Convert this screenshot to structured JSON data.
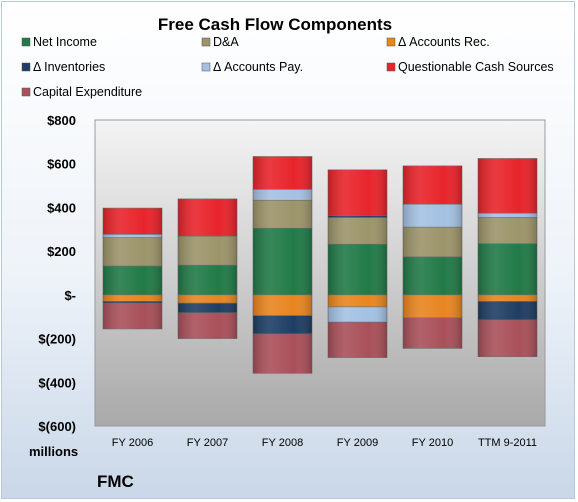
{
  "chart_data": {
    "type": "bar",
    "stacked": true,
    "title": "Free Cash Flow Components",
    "categories": [
      "FY 2006",
      "FY 2007",
      "FY 2008",
      "FY 2009",
      "FY 2010",
      "TTM 9-2011"
    ],
    "ylim": [
      -600,
      800
    ],
    "yticks": [
      800,
      600,
      400,
      200,
      0,
      -200,
      -400,
      -600
    ],
    "ytick_labels": [
      "$800",
      "$600",
      "$400",
      "$200",
      "$-",
      "$(200)",
      "$(400)",
      "$(600)"
    ],
    "unit_label": "millions",
    "company_label": "FMC",
    "legend_position": "top",
    "grid": false,
    "series": [
      {
        "name": "Net Income",
        "color": "#217a48",
        "values": [
          132,
          136,
          305,
          232,
          174,
          234
        ]
      },
      {
        "name": "D&A",
        "color": "#9c946a",
        "values": [
          130,
          133,
          128,
          122,
          136,
          120
        ]
      },
      {
        "name": "Δ Accounts Rec.",
        "color": "#e8851f",
        "values": [
          -30,
          -38,
          -95,
          -55,
          -105,
          -30
        ]
      },
      {
        "name": "Δ Inventories",
        "color": "#1f3d63",
        "values": [
          -8,
          -44,
          -84,
          8,
          0,
          -85
        ]
      },
      {
        "name": "Δ Accounts Pay.",
        "color": "#a4c1e2",
        "values": [
          15,
          0,
          50,
          -70,
          105,
          20
        ]
      },
      {
        "name": "Questionable Cash Sources",
        "color": "#e8242b",
        "values": [
          120,
          170,
          150,
          210,
          175,
          250
        ]
      },
      {
        "name": "Capital Expenditure",
        "color": "#a9505a",
        "values": [
          -118,
          -118,
          -180,
          -162,
          -140,
          -168
        ]
      }
    ]
  }
}
